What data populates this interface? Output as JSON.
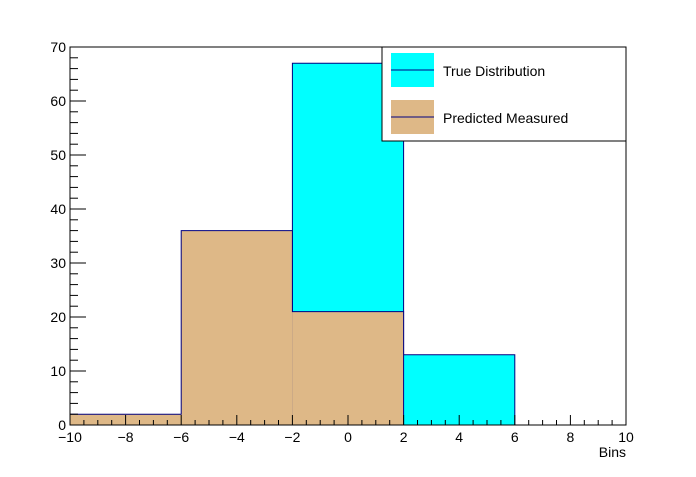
{
  "chart_data": {
    "type": "bar",
    "title": "",
    "xlabel": "Bins",
    "ylabel": "",
    "xlim": [
      -10,
      10
    ],
    "ylim": [
      0,
      70
    ],
    "bin_edges": [
      -10,
      -6,
      -2,
      2,
      6,
      10
    ],
    "x_ticks": [
      -10,
      -8,
      -6,
      -4,
      -2,
      0,
      2,
      4,
      6,
      8,
      10
    ],
    "x_tick_labels": [
      "−10",
      "−8",
      "−6",
      "−4",
      "−2",
      "0",
      "2",
      "4",
      "6",
      "8",
      "10"
    ],
    "y_ticks": [
      0,
      10,
      20,
      30,
      40,
      50,
      60,
      70
    ],
    "y_tick_labels": [
      "0",
      "10",
      "20",
      "30",
      "40",
      "50",
      "60",
      "70"
    ],
    "legend_position": "top-right",
    "series": [
      {
        "name": "True Distribution",
        "values": [
          0,
          0,
          67,
          13,
          0
        ],
        "color": "#00ffff"
      },
      {
        "name": "Predicted Measured",
        "values": [
          2,
          36,
          21,
          0,
          0
        ],
        "color": "#deb887"
      }
    ],
    "outline_color": "#000080"
  }
}
